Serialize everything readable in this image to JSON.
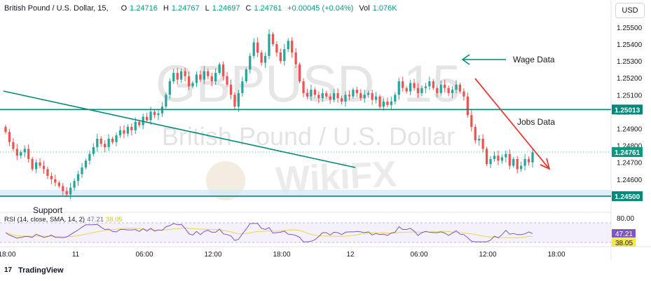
{
  "header": {
    "symbol": "British Pound / U.S. Dollar, 15,",
    "open_label": "O",
    "open": "1.24716",
    "high_label": "H",
    "high": "1.24767",
    "low_label": "L",
    "low": "1.24697",
    "close_label": "C",
    "close": "1.24761",
    "change": "+0.00045 (+0.04%)",
    "vol_label": "Vol",
    "vol": "1.076K",
    "currency_button": "USD"
  },
  "watermark": {
    "ticker": "GBPUSD, 15",
    "name": "British Pound / U.S. Dollar",
    "brand": "WikiFX"
  },
  "annotations": {
    "wage": "Wage Data",
    "jobs": "Jobs Data",
    "support": "Support"
  },
  "rsi": {
    "label": "RSI (14, close, SMA, 14, 2)",
    "value": "47.21",
    "sma_value": "38.05",
    "level_high": "80.00",
    "badge_rsi": "47.21",
    "badge_sma": "38.05"
  },
  "footer": {
    "brand": "TradingView",
    "logo_glyph": "17"
  },
  "colors": {
    "up": "#26a69a",
    "down": "#ef5350",
    "line": "#00897b",
    "arrow_red": "#e53935",
    "rsi": "#7e57c2",
    "rsi_sma": "#e8d84a",
    "price_badge": "#089981"
  },
  "chart_data": {
    "type": "candlestick",
    "timeframe": "15",
    "price_axis": {
      "range": [
        1.2445,
        1.2557
      ],
      "tick_labels": [
        "1.25500",
        "1.25400",
        "1.25300",
        "1.25200",
        "1.25100",
        "1.25000",
        "1.24900",
        "1.24800",
        "1.24700",
        "1.24600",
        "1.24500"
      ]
    },
    "time_axis": {
      "tick_labels": [
        "18:00",
        "11",
        "06:00",
        "12:00",
        "18:00",
        "12",
        "06:00",
        "12:00",
        "18:00"
      ]
    },
    "price_labels": [
      "1.25013",
      "1.24761",
      "1.24500"
    ],
    "current_close": 1.24761,
    "horizontal_levels": [
      1.25013,
      1.245
    ],
    "support_band": [
      1.245,
      1.2454
    ],
    "candles_close": [
      1.2488,
      1.2482,
      1.2478,
      1.2474,
      1.2476,
      1.2478,
      1.2472,
      1.2466,
      1.247,
      1.2468,
      1.2466,
      1.2462,
      1.246,
      1.2458,
      1.2456,
      1.2453,
      1.2451,
      1.2455,
      1.2459,
      1.2463,
      1.2467,
      1.2471,
      1.2475,
      1.2479,
      1.2484,
      1.2481,
      1.2479,
      1.2484,
      1.2482,
      1.2486,
      1.2489,
      1.2487,
      1.2491,
      1.2489,
      1.2494,
      1.2492,
      1.2497,
      1.2495,
      1.25,
      1.2498,
      1.2499,
      1.2503,
      1.251,
      1.2518,
      1.2523,
      1.2519,
      1.2524,
      1.2521,
      1.2515,
      1.2517,
      1.2522,
      1.2519,
      1.2524,
      1.2521,
      1.2518,
      1.2523,
      1.2528,
      1.2521,
      1.2516,
      1.251,
      1.2503,
      1.2511,
      1.2518,
      1.2525,
      1.2533,
      1.2541,
      1.2535,
      1.2529,
      1.2533,
      1.2546,
      1.254,
      1.2535,
      1.253,
      1.2537,
      1.2542,
      1.2535,
      1.2528,
      1.2518,
      1.2511,
      1.2509,
      1.2513,
      1.251,
      1.2508,
      1.2511,
      1.2509,
      1.2507,
      1.2511,
      1.2508,
      1.2506,
      1.251,
      1.2509,
      1.2513,
      1.2511,
      1.2508,
      1.251,
      1.2511,
      1.2507,
      1.2509,
      1.2503,
      1.2506,
      1.2504,
      1.2506,
      1.251,
      1.2518,
      1.2514,
      1.2512,
      1.2517,
      1.2514,
      1.2511,
      1.2514,
      1.2515,
      1.2518,
      1.2514,
      1.2511,
      1.2516,
      1.2514,
      1.2511,
      1.2513,
      1.2516,
      1.2512,
      1.2509,
      1.2498,
      1.2491,
      1.2483,
      1.2484,
      1.2478,
      1.2469,
      1.2472,
      1.2474,
      1.2471,
      1.2473,
      1.2475,
      1.2468,
      1.2472,
      1.2466,
      1.2468,
      1.2472,
      1.247,
      1.2476
    ],
    "rsi_series": {
      "name": "RSI (14, close, SMA, 14, 2)",
      "last": 47.21,
      "sma_last": 38.05,
      "upper_band": 80,
      "lower_band": 20
    }
  }
}
